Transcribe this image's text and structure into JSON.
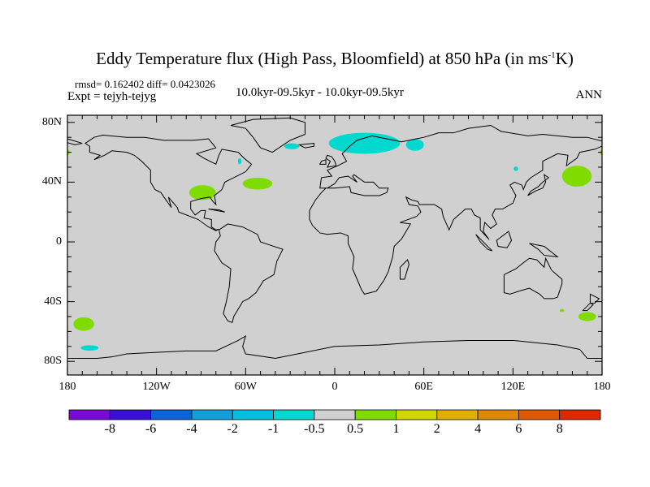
{
  "header": {
    "title_main": "Eddy Temperature flux (High Pass, Bloomfield) at 850 hPa (in ms",
    "title_sup": "-1",
    "title_end": "K)",
    "stats": "rmsd= 0.162402 diff= 0.0423026",
    "experiment": "Expt = tejyh-tejyg",
    "period": "10.0kyr-09.5kyr - 10.0kyr-09.5kyr",
    "season": "ANN"
  },
  "axes": {
    "lat_labels": [
      {
        "text": "80N",
        "value": 80
      },
      {
        "text": "40N",
        "value": 40
      },
      {
        "text": "0",
        "value": 0
      },
      {
        "text": "40S",
        "value": -40
      },
      {
        "text": "80S",
        "value": -80
      }
    ],
    "lon_labels": [
      {
        "text": "180",
        "value": -180
      },
      {
        "text": "120W",
        "value": -120
      },
      {
        "text": "60W",
        "value": -60
      },
      {
        "text": "0",
        "value": 0
      },
      {
        "text": "60E",
        "value": 60
      },
      {
        "text": "120E",
        "value": 120
      },
      {
        "text": "180",
        "value": 180
      }
    ]
  },
  "colorbar": {
    "colors": [
      "#7a0ad8",
      "#3a10d8",
      "#0a64dc",
      "#10a0dc",
      "#00c0e0",
      "#00d8d0",
      "#d0d0d0",
      "#80dc00",
      "#d0d800",
      "#e0b000",
      "#e08800",
      "#e05800",
      "#e02800"
    ],
    "labels": [
      "-8",
      "-6",
      "-4",
      "-2",
      "-1",
      "-0.5",
      "0.5",
      "1",
      "2",
      "4",
      "6",
      "8"
    ]
  },
  "anomaly_regions": [
    {
      "lon": 20,
      "lat": 66,
      "dlon": 24,
      "dlat": 7,
      "color": "#00d8d0"
    },
    {
      "lon": 54,
      "lat": 65,
      "dlon": 6,
      "dlat": 4,
      "color": "#00d8d0"
    },
    {
      "lon": -29,
      "lat": 64,
      "dlon": 5,
      "dlat": 2,
      "color": "#00d8d0"
    },
    {
      "lon": -64,
      "lat": 54,
      "dlon": 1.2,
      "dlat": 2,
      "color": "#00d8d0"
    },
    {
      "lon": 122,
      "lat": 49,
      "dlon": 1.5,
      "dlat": 1.5,
      "color": "#00d8d0"
    },
    {
      "lon": -165,
      "lat": -71,
      "dlon": 6,
      "dlat": 1.8,
      "color": "#00d8d0"
    },
    {
      "lon": -89,
      "lat": 33,
      "dlon": 9,
      "dlat": 5,
      "color": "#80dc00"
    },
    {
      "lon": -52,
      "lat": 39,
      "dlon": 10,
      "dlat": 4,
      "color": "#80dc00"
    },
    {
      "lon": 163,
      "lat": 44,
      "dlon": 10,
      "dlat": 7,
      "color": "#80dc00"
    },
    {
      "lon": -169,
      "lat": -55,
      "dlon": 7,
      "dlat": 4.5,
      "color": "#80dc00"
    },
    {
      "lon": 170,
      "lat": -50,
      "dlon": 6,
      "dlat": 3,
      "color": "#80dc00"
    },
    {
      "lon": 153,
      "lat": -46,
      "dlon": 1.5,
      "dlat": 1,
      "color": "#80dc00"
    },
    {
      "lon": -180,
      "lat": 60,
      "dlon": 1.5,
      "dlat": 2,
      "color": "#80dc00"
    },
    {
      "lon": 180,
      "lat": 60,
      "dlon": 1.5,
      "dlat": 2,
      "color": "#80dc00"
    }
  ]
}
